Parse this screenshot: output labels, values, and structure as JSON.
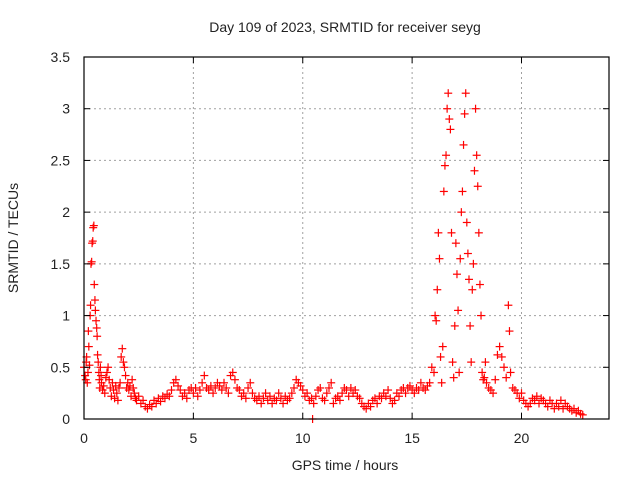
{
  "chart_data": {
    "type": "scatter",
    "title": "Day 109 of 2023, SRMTID for receiver seyg",
    "xlabel": "GPS time / hours",
    "ylabel": "SRMTID / TECUs",
    "xlim": [
      0,
      24
    ],
    "ylim": [
      0,
      3.5
    ],
    "xticks": [
      "0",
      "5",
      "10",
      "15",
      "20"
    ],
    "xtick_values": [
      0,
      5,
      10,
      15,
      20
    ],
    "yticks": [
      "0",
      "0.5",
      "1",
      "1.5",
      "2",
      "2.5",
      "3",
      "3.5"
    ],
    "ytick_values": [
      0,
      0.5,
      1,
      1.5,
      2,
      2.5,
      3,
      3.5
    ],
    "grid": true,
    "marker": "plus",
    "color": "#ff0000",
    "series": [
      {
        "name": "SRMTID",
        "points": [
          [
            0.0,
            0.5
          ],
          [
            0.05,
            0.42
          ],
          [
            0.08,
            0.38
          ],
          [
            0.1,
            0.55
          ],
          [
            0.12,
            0.6
          ],
          [
            0.15,
            0.35
          ],
          [
            0.18,
            0.45
          ],
          [
            0.2,
            0.85
          ],
          [
            0.22,
            0.7
          ],
          [
            0.25,
            0.52
          ],
          [
            0.28,
            1.0
          ],
          [
            0.3,
            1.1
          ],
          [
            0.32,
            1.5
          ],
          [
            0.35,
            1.52
          ],
          [
            0.37,
            1.7
          ],
          [
            0.4,
            1.72
          ],
          [
            0.42,
            1.85
          ],
          [
            0.45,
            1.87
          ],
          [
            0.47,
            1.3
          ],
          [
            0.5,
            1.15
          ],
          [
            0.52,
            1.05
          ],
          [
            0.55,
            0.95
          ],
          [
            0.58,
            0.88
          ],
          [
            0.6,
            0.8
          ],
          [
            0.62,
            0.62
          ],
          [
            0.65,
            0.55
          ],
          [
            0.68,
            0.45
          ],
          [
            0.7,
            0.38
          ],
          [
            0.72,
            0.3
          ],
          [
            0.75,
            0.5
          ],
          [
            0.78,
            0.42
          ],
          [
            0.8,
            0.35
          ],
          [
            0.85,
            0.28
          ],
          [
            0.9,
            0.32
          ],
          [
            0.95,
            0.25
          ],
          [
            1.0,
            0.4
          ],
          [
            1.05,
            0.45
          ],
          [
            1.1,
            0.5
          ],
          [
            1.15,
            0.38
          ],
          [
            1.2,
            0.3
          ],
          [
            1.25,
            0.22
          ],
          [
            1.3,
            0.35
          ],
          [
            1.35,
            0.28
          ],
          [
            1.4,
            0.2
          ],
          [
            1.45,
            0.32
          ],
          [
            1.5,
            0.25
          ],
          [
            1.55,
            0.18
          ],
          [
            1.6,
            0.3
          ],
          [
            1.65,
            0.35
          ],
          [
            1.7,
            0.6
          ],
          [
            1.75,
            0.68
          ],
          [
            1.8,
            0.55
          ],
          [
            1.85,
            0.5
          ],
          [
            1.9,
            0.42
          ],
          [
            1.95,
            0.3
          ],
          [
            2.0,
            0.35
          ],
          [
            2.05,
            0.28
          ],
          [
            2.1,
            0.32
          ],
          [
            2.15,
            0.22
          ],
          [
            2.2,
            0.38
          ],
          [
            2.25,
            0.3
          ],
          [
            2.3,
            0.25
          ],
          [
            2.35,
            0.2
          ],
          [
            2.4,
            0.18
          ],
          [
            2.5,
            0.22
          ],
          [
            2.6,
            0.15
          ],
          [
            2.7,
            0.18
          ],
          [
            2.8,
            0.12
          ],
          [
            2.9,
            0.1
          ],
          [
            3.0,
            0.14
          ],
          [
            3.1,
            0.12
          ],
          [
            3.2,
            0.18
          ],
          [
            3.3,
            0.15
          ],
          [
            3.4,
            0.2
          ],
          [
            3.5,
            0.17
          ],
          [
            3.6,
            0.22
          ],
          [
            3.7,
            0.2
          ],
          [
            3.8,
            0.24
          ],
          [
            3.9,
            0.22
          ],
          [
            4.0,
            0.28
          ],
          [
            4.1,
            0.35
          ],
          [
            4.2,
            0.38
          ],
          [
            4.3,
            0.32
          ],
          [
            4.4,
            0.28
          ],
          [
            4.5,
            0.22
          ],
          [
            4.6,
            0.25
          ],
          [
            4.7,
            0.2
          ],
          [
            4.8,
            0.28
          ],
          [
            4.9,
            0.3
          ],
          [
            5.0,
            0.25
          ],
          [
            5.1,
            0.3
          ],
          [
            5.2,
            0.22
          ],
          [
            5.3,
            0.28
          ],
          [
            5.4,
            0.35
          ],
          [
            5.5,
            0.42
          ],
          [
            5.6,
            0.3
          ],
          [
            5.7,
            0.28
          ],
          [
            5.8,
            0.32
          ],
          [
            5.9,
            0.25
          ],
          [
            6.0,
            0.3
          ],
          [
            6.1,
            0.35
          ],
          [
            6.2,
            0.32
          ],
          [
            6.3,
            0.28
          ],
          [
            6.4,
            0.35
          ],
          [
            6.5,
            0.3
          ],
          [
            6.6,
            0.25
          ],
          [
            6.7,
            0.42
          ],
          [
            6.8,
            0.45
          ],
          [
            6.9,
            0.38
          ],
          [
            7.0,
            0.3
          ],
          [
            7.1,
            0.28
          ],
          [
            7.2,
            0.22
          ],
          [
            7.3,
            0.25
          ],
          [
            7.4,
            0.2
          ],
          [
            7.5,
            0.3
          ],
          [
            7.6,
            0.35
          ],
          [
            7.7,
            0.25
          ],
          [
            7.8,
            0.2
          ],
          [
            7.9,
            0.18
          ],
          [
            8.0,
            0.22
          ],
          [
            8.1,
            0.15
          ],
          [
            8.2,
            0.2
          ],
          [
            8.3,
            0.25
          ],
          [
            8.4,
            0.18
          ],
          [
            8.5,
            0.22
          ],
          [
            8.6,
            0.15
          ],
          [
            8.7,
            0.2
          ],
          [
            8.8,
            0.18
          ],
          [
            8.9,
            0.25
          ],
          [
            9.0,
            0.2
          ],
          [
            9.1,
            0.15
          ],
          [
            9.2,
            0.22
          ],
          [
            9.3,
            0.18
          ],
          [
            9.4,
            0.2
          ],
          [
            9.5,
            0.25
          ],
          [
            9.6,
            0.3
          ],
          [
            9.7,
            0.38
          ],
          [
            9.8,
            0.35
          ],
          [
            9.9,
            0.32
          ],
          [
            10.0,
            0.28
          ],
          [
            10.1,
            0.22
          ],
          [
            10.2,
            0.25
          ],
          [
            10.3,
            0.18
          ],
          [
            10.4,
            0.2
          ],
          [
            10.45,
            0.0
          ],
          [
            10.5,
            0.15
          ],
          [
            10.6,
            0.22
          ],
          [
            10.7,
            0.28
          ],
          [
            10.8,
            0.3
          ],
          [
            10.9,
            0.2
          ],
          [
            11.0,
            0.18
          ],
          [
            11.1,
            0.25
          ],
          [
            11.2,
            0.3
          ],
          [
            11.3,
            0.35
          ],
          [
            11.4,
            0.15
          ],
          [
            11.5,
            0.2
          ],
          [
            11.6,
            0.22
          ],
          [
            11.7,
            0.18
          ],
          [
            11.8,
            0.25
          ],
          [
            11.9,
            0.3
          ],
          [
            12.0,
            0.28
          ],
          [
            12.1,
            0.22
          ],
          [
            12.2,
            0.3
          ],
          [
            12.3,
            0.25
          ],
          [
            12.4,
            0.28
          ],
          [
            12.5,
            0.22
          ],
          [
            12.6,
            0.2
          ],
          [
            12.7,
            0.15
          ],
          [
            12.8,
            0.12
          ],
          [
            12.9,
            0.1
          ],
          [
            13.0,
            0.15
          ],
          [
            13.1,
            0.12
          ],
          [
            13.2,
            0.18
          ],
          [
            13.3,
            0.2
          ],
          [
            13.4,
            0.15
          ],
          [
            13.5,
            0.22
          ],
          [
            13.6,
            0.2
          ],
          [
            13.7,
            0.25
          ],
          [
            13.8,
            0.22
          ],
          [
            13.9,
            0.28
          ],
          [
            14.0,
            0.2
          ],
          [
            14.1,
            0.15
          ],
          [
            14.2,
            0.18
          ],
          [
            14.3,
            0.25
          ],
          [
            14.4,
            0.22
          ],
          [
            14.5,
            0.28
          ],
          [
            14.6,
            0.3
          ],
          [
            14.7,
            0.25
          ],
          [
            14.8,
            0.3
          ],
          [
            14.9,
            0.32
          ],
          [
            15.0,
            0.28
          ],
          [
            15.1,
            0.25
          ],
          [
            15.2,
            0.3
          ],
          [
            15.3,
            0.28
          ],
          [
            15.4,
            0.35
          ],
          [
            15.5,
            0.3
          ],
          [
            15.6,
            0.28
          ],
          [
            15.7,
            0.32
          ],
          [
            15.8,
            0.35
          ],
          [
            15.9,
            0.5
          ],
          [
            16.0,
            0.45
          ],
          [
            16.05,
            1.0
          ],
          [
            16.1,
            0.95
          ],
          [
            16.15,
            1.25
          ],
          [
            16.2,
            1.8
          ],
          [
            16.25,
            1.55
          ],
          [
            16.3,
            0.6
          ],
          [
            16.35,
            0.35
          ],
          [
            16.4,
            0.7
          ],
          [
            16.45,
            2.2
          ],
          [
            16.5,
            2.45
          ],
          [
            16.55,
            2.55
          ],
          [
            16.6,
            3.0
          ],
          [
            16.65,
            3.15
          ],
          [
            16.7,
            2.9
          ],
          [
            16.75,
            2.8
          ],
          [
            16.8,
            1.8
          ],
          [
            16.85,
            0.55
          ],
          [
            16.9,
            0.4
          ],
          [
            16.95,
            0.9
          ],
          [
            17.0,
            1.7
          ],
          [
            17.05,
            1.4
          ],
          [
            17.1,
            1.05
          ],
          [
            17.15,
            0.45
          ],
          [
            17.2,
            1.55
          ],
          [
            17.25,
            2.0
          ],
          [
            17.3,
            2.2
          ],
          [
            17.35,
            2.65
          ],
          [
            17.4,
            2.95
          ],
          [
            17.45,
            3.15
          ],
          [
            17.5,
            1.9
          ],
          [
            17.55,
            1.6
          ],
          [
            17.6,
            1.35
          ],
          [
            17.65,
            0.9
          ],
          [
            17.7,
            0.55
          ],
          [
            17.75,
            1.25
          ],
          [
            17.8,
            1.5
          ],
          [
            17.85,
            2.4
          ],
          [
            17.9,
            3.0
          ],
          [
            17.95,
            2.55
          ],
          [
            18.0,
            2.25
          ],
          [
            18.05,
            1.8
          ],
          [
            18.1,
            1.3
          ],
          [
            18.15,
            1.0
          ],
          [
            18.2,
            0.45
          ],
          [
            18.25,
            0.38
          ],
          [
            18.3,
            0.4
          ],
          [
            18.35,
            0.55
          ],
          [
            18.4,
            0.35
          ],
          [
            18.5,
            0.3
          ],
          [
            18.6,
            0.28
          ],
          [
            18.7,
            0.25
          ],
          [
            18.8,
            0.38
          ],
          [
            18.9,
            0.62
          ],
          [
            19.0,
            0.7
          ],
          [
            19.1,
            0.6
          ],
          [
            19.2,
            0.5
          ],
          [
            19.3,
            0.4
          ],
          [
            19.4,
            1.1
          ],
          [
            19.45,
            0.85
          ],
          [
            19.5,
            0.45
          ],
          [
            19.6,
            0.3
          ],
          [
            19.7,
            0.28
          ],
          [
            19.8,
            0.25
          ],
          [
            19.9,
            0.2
          ],
          [
            20.0,
            0.25
          ],
          [
            20.1,
            0.18
          ],
          [
            20.2,
            0.15
          ],
          [
            20.3,
            0.12
          ],
          [
            20.4,
            0.15
          ],
          [
            20.5,
            0.2
          ],
          [
            20.6,
            0.18
          ],
          [
            20.7,
            0.22
          ],
          [
            20.8,
            0.15
          ],
          [
            20.9,
            0.2
          ],
          [
            21.0,
            0.18
          ],
          [
            21.1,
            0.15
          ],
          [
            21.2,
            0.12
          ],
          [
            21.3,
            0.18
          ],
          [
            21.4,
            0.15
          ],
          [
            21.5,
            0.1
          ],
          [
            21.6,
            0.15
          ],
          [
            21.7,
            0.12
          ],
          [
            21.8,
            0.18
          ],
          [
            21.9,
            0.1
          ],
          [
            22.0,
            0.15
          ],
          [
            22.1,
            0.12
          ],
          [
            22.2,
            0.1
          ],
          [
            22.3,
            0.08
          ],
          [
            22.4,
            0.1
          ],
          [
            22.5,
            0.06
          ],
          [
            22.6,
            0.08
          ],
          [
            22.7,
            0.05
          ],
          [
            22.8,
            0.04
          ]
        ]
      }
    ]
  }
}
